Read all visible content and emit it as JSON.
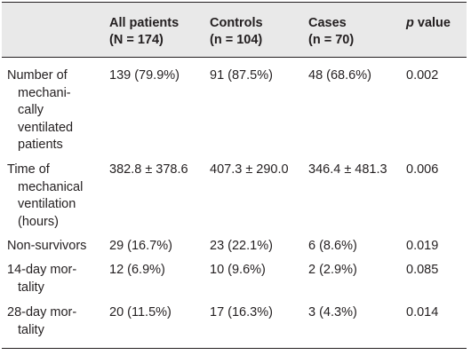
{
  "header": {
    "col1": [
      "All patients",
      "(N = 174)"
    ],
    "col2": [
      "Controls",
      "(n = 104)"
    ],
    "col3": [
      "Cases",
      "(n = 70)"
    ],
    "col4_italic": "p",
    "col4_rest": " value"
  },
  "rows": [
    {
      "label": [
        "Number of",
        "mechani-",
        "cally",
        "ventilated",
        "patients"
      ],
      "all": "139 (79.9%)",
      "controls": "91 (87.5%)",
      "cases": "48 (68.6%)",
      "p": "0.002"
    },
    {
      "label": [
        "Time of",
        "mechanical",
        "ventilation",
        "(hours)"
      ],
      "all": "382.8 ± 378.6",
      "controls": "407.3 ± 290.0",
      "cases": "346.4 ± 481.3",
      "p": "0.006"
    },
    {
      "label": [
        "Non-survivors"
      ],
      "all": "29 (16.7%)",
      "controls": "23 (22.1%)",
      "cases": "6 (8.6%)",
      "p": "0.019"
    },
    {
      "label": [
        "14-day mor-",
        "tality"
      ],
      "all": "12 (6.9%)",
      "controls": "10 (9.6%)",
      "cases": "2 (2.9%)",
      "p": "0.085"
    },
    {
      "label": [
        "28-day mor-",
        "tality"
      ],
      "all": "20 (11.5%)",
      "controls": "17 (16.3%)",
      "cases": "3 (4.3%)",
      "p": "0.014"
    }
  ]
}
